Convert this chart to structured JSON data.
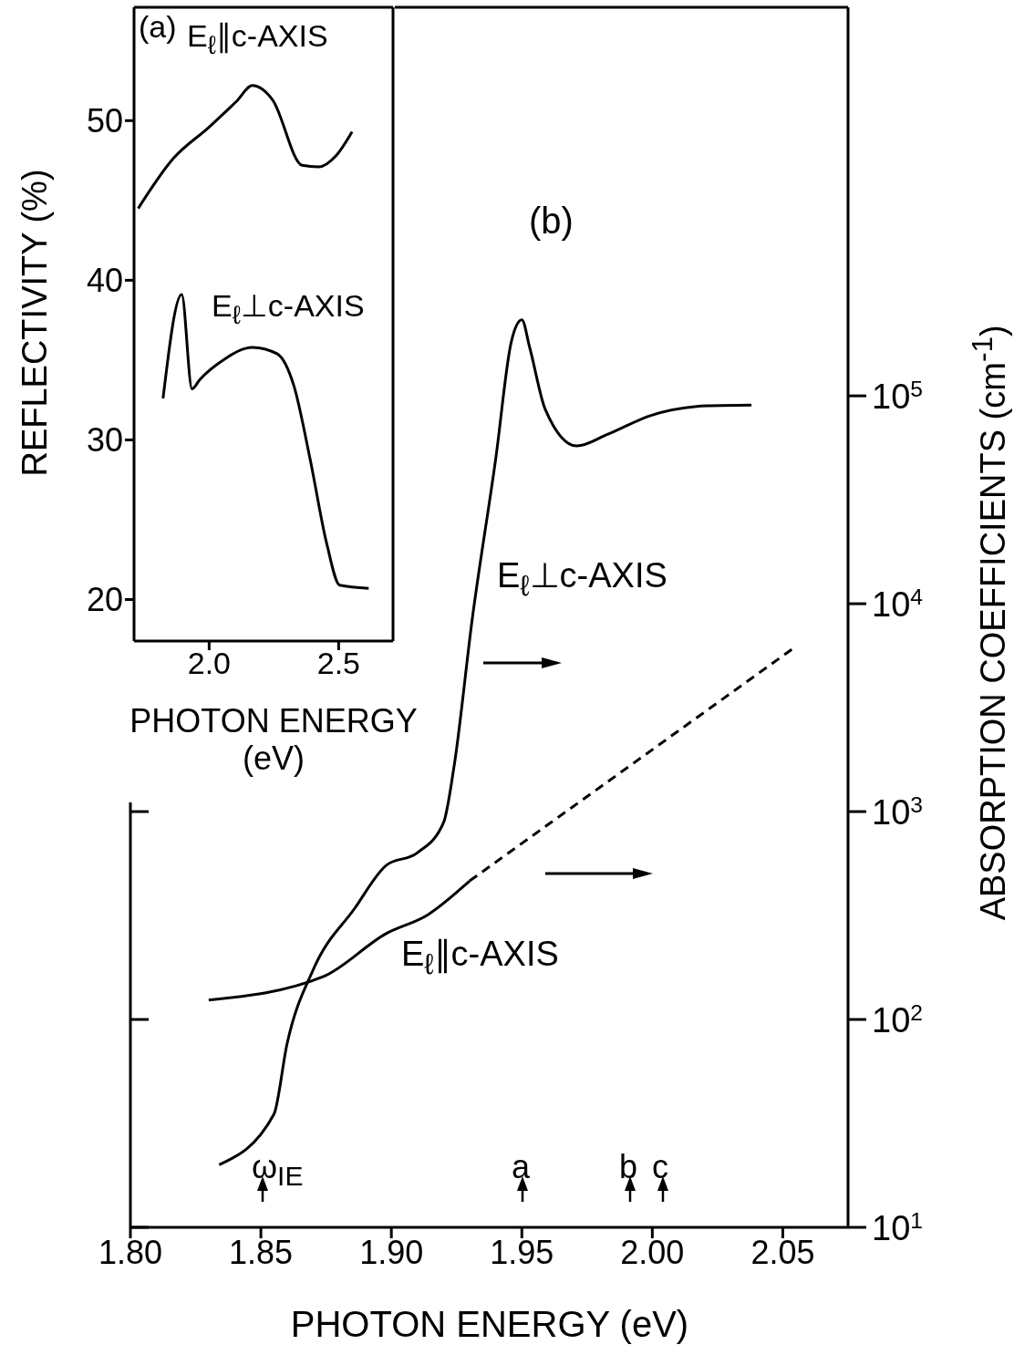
{
  "chart_data": [
    {
      "type": "line",
      "xlabel": "PHOTON ENERGY (eV)",
      "ylabel": "ABSORPTION COEFFICIENTS (cm$^{-1}$)",
      "log": true,
      "marker": "none",
      "xlim": [
        1.8,
        2.075
      ],
      "xticks": [
        {
          "value": 1.8,
          "label": "1.80"
        },
        {
          "value": 1.85,
          "label": "1.85"
        },
        {
          "value": 1.9,
          "label": "1.90"
        },
        {
          "value": 1.95,
          "label": "1.95"
        },
        {
          "value": 2,
          "label": "2.00"
        },
        {
          "value": 2.05,
          "label": "2.05"
        }
      ],
      "ylim": [
        10,
        7400000
      ],
      "yticks": [
        {
          "value": 10,
          "label": "10$^{1}$"
        },
        {
          "value": 100,
          "label": "10$^{2}$"
        },
        {
          "value": 1000,
          "label": "10$^{3}$"
        },
        {
          "value": 10000,
          "label": "10$^{4}$"
        },
        {
          "value": 100000,
          "label": "10$^{5}$"
        }
      ],
      "annotations": [
        "(b)",
        "ω$_{IE}$",
        "a",
        "b",
        "c"
      ],
      "series": [
        {
          "name": "E$_{ℓ}$⊥c-AXIS",
          "color": "#000000",
          "line_style": "solid",
          "x": [
            1.834,
            1.855,
            1.86,
            1.87,
            1.886,
            1.898,
            1.91,
            1.92,
            1.924,
            1.931,
            1.94,
            1.946,
            1.95,
            1.953,
            1.959,
            1.971,
            1.983,
            1.9995,
            2.021,
            2.038
          ],
          "values": [
            20,
            35,
            76,
            173,
            343,
            551,
            634,
            885,
            1640,
            8450,
            49900,
            183000,
            232000,
            171000,
            85900,
            57400,
            65400,
            80500,
            89500,
            90300
          ]
        },
        {
          "name": "E$_{ℓ}$∥c-AXIS",
          "color": "#000000",
          "line_style": "solid",
          "x": [
            1.83,
            1.874,
            1.898,
            1.914,
            1.93
          ],
          "values": [
            124,
            161,
            259,
            319,
            464
          ]
        },
        {
          "color": "#000000",
          "line_style": "dashed",
          "x": [
            1.93,
            2.054
          ],
          "values": [
            464,
            6100
          ]
        }
      ]
    },
    {
      "type": "line",
      "xlabel": "PHOTON ENERGY (eV)",
      "ylabel": "REFLECTIVITY (%)",
      "marker": "none",
      "xlim": [
        1.71,
        2.71
      ],
      "xticks": [
        {
          "value": 2,
          "label": "2.0"
        },
        {
          "value": 2.5,
          "label": "2.5"
        }
      ],
      "ylim": [
        17.4,
        57.1
      ],
      "yticks": [
        20,
        30,
        40,
        50
      ],
      "annotations": [
        "(a)"
      ],
      "series": [
        {
          "name": "E$_{ℓ}$∥c-AXIS",
          "color": "#000000",
          "line_style": "solid",
          "x": [
            1.726,
            1.86,
            2.0,
            2.105,
            2.167,
            2.245,
            2.359,
            2.423,
            2.49,
            2.552
          ],
          "values": [
            44.5,
            47.6,
            49.6,
            51.2,
            52.2,
            51.3,
            47.2,
            47.1,
            47.8,
            49.3
          ]
        },
        {
          "name": "E$_{ℓ}$⊥c-AXIS",
          "color": "#000000",
          "line_style": "solid",
          "x": [
            1.822,
            1.894,
            1.934,
            1.965,
            2.054,
            2.167,
            2.262,
            2.327,
            2.391,
            2.454,
            2.504,
            2.616
          ],
          "values": [
            32.6,
            39.1,
            33.2,
            33.8,
            35.0,
            35.8,
            35.4,
            33.4,
            28.7,
            23.5,
            20.9,
            20.7
          ]
        }
      ]
    }
  ]
}
